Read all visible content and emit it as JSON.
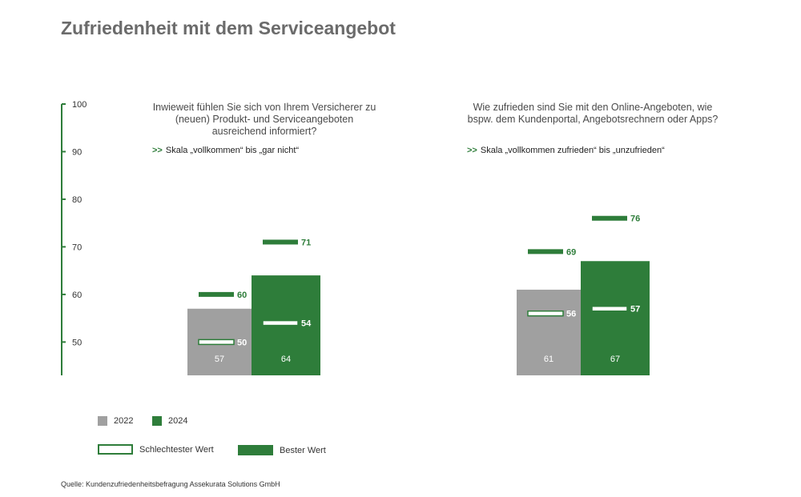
{
  "title": "Zufriedenheit mit dem Serviceangebot",
  "colors": {
    "series_2022": "#a0a0a0",
    "series_2024": "#2e7d3a",
    "axis": "#2e7d3a",
    "label_dark": "#2e7d3a",
    "label_light": "#ffffff"
  },
  "panels": [
    {
      "question": "Inwieweit fühlen Sie sich von Ihrem Versicherer zu (neuen) Produkt- und Serviceangeboten ausreichend informiert?",
      "scale_arrows": ">>",
      "scale_text": "Skala „vollkommen“ bis „gar nicht“"
    },
    {
      "question": "Wie zufrieden sind Sie mit den Online-Angeboten, wie bspw. dem Kundenportal, Angebotsrechnern oder Apps?",
      "scale_arrows": ">>",
      "scale_text": "Skala „vollkommen zufrieden“ bis „unzufrieden“"
    }
  ],
  "chart_data": {
    "type": "bar",
    "y_axis": {
      "ticks": [
        50,
        60,
        70,
        80,
        90,
        100
      ],
      "ylim": [
        43,
        100
      ],
      "grid": false
    },
    "groups": [
      {
        "bars": [
          {
            "series": "2022",
            "value": 57,
            "worst": 50,
            "best": 60
          },
          {
            "series": "2024",
            "value": 64,
            "worst": 54,
            "best": 71
          }
        ]
      },
      {
        "bars": [
          {
            "series": "2022",
            "value": 61,
            "worst": 56,
            "best": 69
          },
          {
            "series": "2024",
            "value": 67,
            "worst": 57,
            "best": 76
          }
        ]
      }
    ],
    "legend": {
      "series": [
        {
          "name": "2022",
          "color": "#a0a0a0"
        },
        {
          "name": "2024",
          "color": "#2e7d3a"
        }
      ],
      "markers": {
        "worst": "Schlechtester Wert",
        "best": "Bester Wert"
      },
      "placement": "bottom-left"
    }
  },
  "source": "Quelle: Kundenzufriedenheitsbefragung Assekurata Solutions GmbH"
}
